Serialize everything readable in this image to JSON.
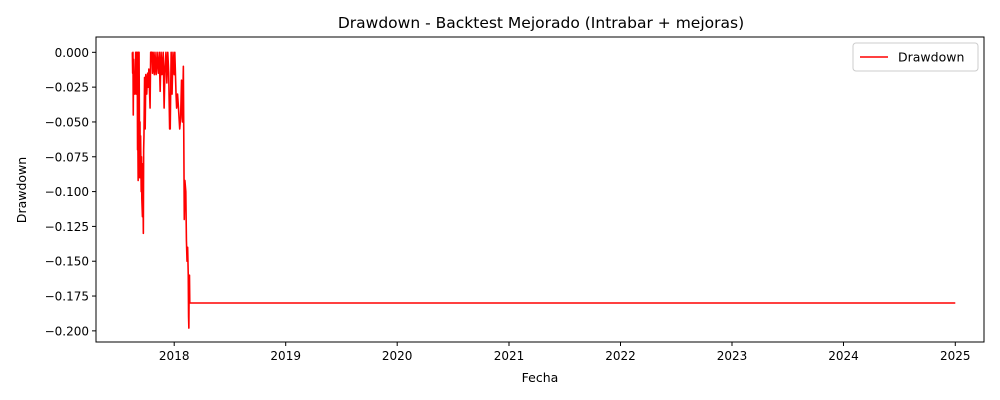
{
  "chart_data": {
    "type": "line",
    "title": "Drawdown - Backtest Mejorado (Intrabar + mejoras)",
    "xlabel": "Fecha",
    "ylabel": "Drawdown",
    "xlim": [
      "2017-04-20",
      "2025-04-05"
    ],
    "ylim": [
      -0.208,
      0.011
    ],
    "x_ticks": [
      "2018-01-01",
      "2019-01-01",
      "2020-01-01",
      "2021-01-01",
      "2022-01-01",
      "2023-01-01",
      "2024-01-01",
      "2025-01-01"
    ],
    "x_tick_labels": [
      "2018",
      "2019",
      "2020",
      "2021",
      "2022",
      "2023",
      "2024",
      "2025"
    ],
    "y_ticks": [
      0.0,
      -0.025,
      -0.05,
      -0.075,
      -0.1,
      -0.125,
      -0.15,
      -0.175,
      -0.2
    ],
    "y_tick_labels": [
      "0.000",
      "−0.025",
      "−0.050",
      "−0.075",
      "−0.100",
      "−0.125",
      "−0.150",
      "−0.175",
      "−0.200"
    ],
    "grid": false,
    "legend": "upper-right",
    "series": [
      {
        "name": "Drawdown",
        "color": "#ff0000",
        "points": [
          [
            "2017-08-17",
            0.0
          ],
          [
            "2017-08-18",
            -0.015
          ],
          [
            "2017-08-19",
            0.0
          ],
          [
            "2017-08-20",
            -0.045
          ],
          [
            "2017-08-21",
            -0.005
          ],
          [
            "2017-08-22",
            -0.03
          ],
          [
            "2017-08-24",
            -0.03
          ],
          [
            "2017-08-26",
            -0.02
          ],
          [
            "2017-08-28",
            0.0
          ],
          [
            "2017-08-29",
            -0.03
          ],
          [
            "2017-08-30",
            0.0
          ],
          [
            "2017-09-01",
            -0.025
          ],
          [
            "2017-09-02",
            0.0
          ],
          [
            "2017-09-03",
            -0.07
          ],
          [
            "2017-09-04",
            -0.06
          ],
          [
            "2017-09-05",
            -0.092
          ],
          [
            "2017-09-06",
            0.0
          ],
          [
            "2017-09-07",
            -0.05
          ],
          [
            "2017-09-08",
            0.0
          ],
          [
            "2017-09-09",
            -0.045
          ],
          [
            "2017-09-10",
            -0.09
          ],
          [
            "2017-09-11",
            -0.05
          ],
          [
            "2017-09-12",
            -0.085
          ],
          [
            "2017-09-13",
            -0.06
          ],
          [
            "2017-09-15",
            -0.1
          ],
          [
            "2017-09-16",
            -0.075
          ],
          [
            "2017-09-17",
            -0.105
          ],
          [
            "2017-09-19",
            -0.118
          ],
          [
            "2017-09-20",
            -0.08
          ],
          [
            "2017-09-22",
            -0.13
          ],
          [
            "2017-09-23",
            -0.07
          ],
          [
            "2017-09-24",
            -0.06
          ],
          [
            "2017-09-26",
            -0.018
          ],
          [
            "2017-09-28",
            -0.055
          ],
          [
            "2017-09-30",
            -0.016
          ],
          [
            "2017-10-03",
            -0.03
          ],
          [
            "2017-10-06",
            -0.015
          ],
          [
            "2017-10-08",
            -0.025
          ],
          [
            "2017-10-10",
            -0.012
          ],
          [
            "2017-10-14",
            -0.04
          ],
          [
            "2017-10-16",
            0.0
          ],
          [
            "2017-10-20",
            0.0
          ],
          [
            "2017-10-22",
            -0.015
          ],
          [
            "2017-10-24",
            0.0
          ],
          [
            "2017-10-28",
            -0.016
          ],
          [
            "2017-10-30",
            0.0
          ],
          [
            "2017-11-03",
            -0.016
          ],
          [
            "2017-11-06",
            0.0
          ],
          [
            "2017-11-10",
            -0.015
          ],
          [
            "2017-11-13",
            0.0
          ],
          [
            "2017-11-16",
            -0.028
          ],
          [
            "2017-11-19",
            0.0
          ],
          [
            "2017-11-22",
            -0.016
          ],
          [
            "2017-11-26",
            0.0
          ],
          [
            "2017-11-29",
            -0.04
          ],
          [
            "2017-12-02",
            -0.01
          ],
          [
            "2017-12-05",
            0.0
          ],
          [
            "2017-12-08",
            -0.022
          ],
          [
            "2017-12-11",
            0.0
          ],
          [
            "2017-12-14",
            -0.015
          ],
          [
            "2017-12-17",
            -0.055
          ],
          [
            "2017-12-19",
            -0.055
          ],
          [
            "2017-12-22",
            0.0
          ],
          [
            "2017-12-25",
            -0.03
          ],
          [
            "2017-12-28",
            0.0
          ],
          [
            "2018-01-01",
            -0.016
          ],
          [
            "2018-01-03",
            0.0
          ],
          [
            "2018-01-07",
            -0.03
          ],
          [
            "2018-01-09",
            -0.04
          ],
          [
            "2018-01-12",
            -0.03
          ],
          [
            "2018-01-15",
            -0.04
          ],
          [
            "2018-01-19",
            -0.055
          ],
          [
            "2018-01-22",
            -0.047
          ],
          [
            "2018-01-25",
            -0.02
          ],
          [
            "2018-01-28",
            -0.05
          ],
          [
            "2018-01-31",
            -0.01
          ],
          [
            "2018-02-03",
            -0.12
          ],
          [
            "2018-02-05",
            -0.092
          ],
          [
            "2018-02-08",
            -0.1
          ],
          [
            "2018-02-10",
            -0.135
          ],
          [
            "2018-02-12",
            -0.15
          ],
          [
            "2018-02-14",
            -0.14
          ],
          [
            "2018-02-16",
            -0.16
          ],
          [
            "2018-02-17",
            -0.19
          ],
          [
            "2018-02-18",
            -0.198
          ],
          [
            "2018-02-19",
            -0.165
          ],
          [
            "2018-02-20",
            -0.16
          ],
          [
            "2018-02-21",
            -0.18
          ],
          [
            "2018-02-24",
            -0.18
          ],
          [
            "2019-01-01",
            -0.18
          ],
          [
            "2020-01-01",
            -0.18
          ],
          [
            "2021-01-01",
            -0.18
          ],
          [
            "2022-01-01",
            -0.18
          ],
          [
            "2023-01-01",
            -0.18
          ],
          [
            "2024-01-01",
            -0.18
          ],
          [
            "2025-01-01",
            -0.18
          ]
        ]
      }
    ]
  }
}
